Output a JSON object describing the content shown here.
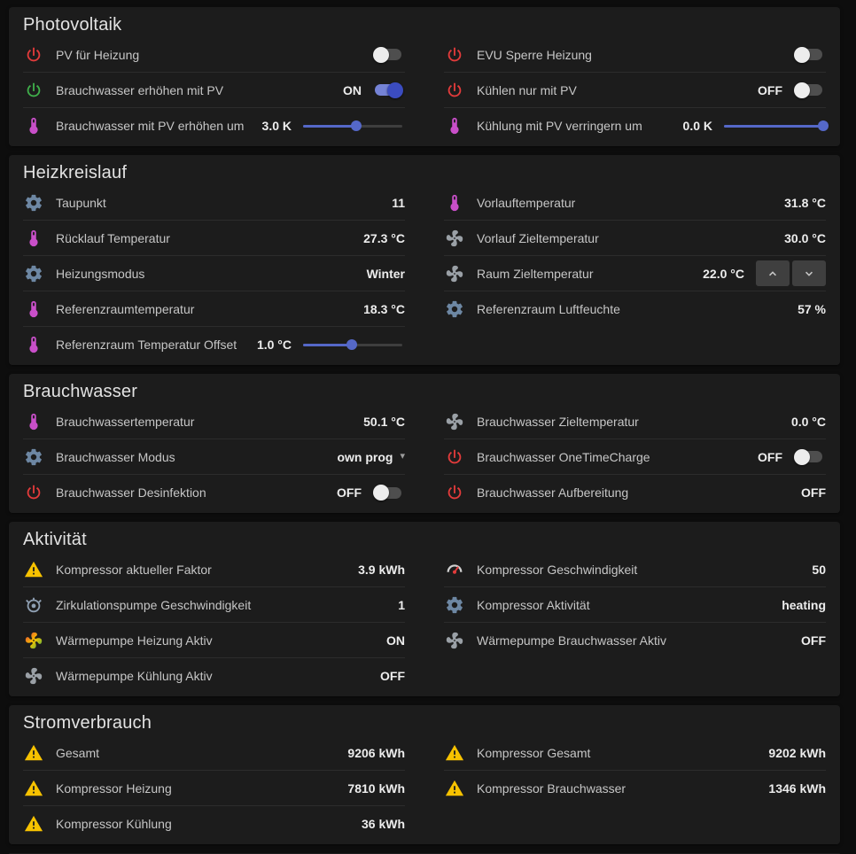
{
  "colors": {
    "background": "#0d0d0d",
    "card": "#1c1c1c",
    "accent_blue": "#5568c8",
    "toggle_on_track": "#7583d6",
    "toggle_on_knob": "#3b4cc0",
    "power_red": "#e23b3b",
    "power_green": "#3fae4a",
    "thermometer_magenta": "#c94fc9",
    "gear_blue": "#6d87a3",
    "fan_gray": "#9aa0a6",
    "warning_yellow": "#f7c200"
  },
  "sections": [
    {
      "title": "Photovoltaik",
      "columns": [
        {
          "rows": [
            {
              "icon": "power-red",
              "label": "PV für Heizung",
              "control": {
                "type": "toggle",
                "state": "off"
              }
            },
            {
              "icon": "power-green",
              "label": "Brauchwasser erhöhen mit PV",
              "value": "ON",
              "control": {
                "type": "toggle",
                "state": "on"
              }
            },
            {
              "icon": "thermometer",
              "label": "Brauchwasser mit PV erhöhen um",
              "value": "3.0 K",
              "control": {
                "type": "slider",
                "percent": 54
              }
            }
          ]
        },
        {
          "rows": [
            {
              "icon": "power-red",
              "label": "EVU Sperre Heizung",
              "control": {
                "type": "toggle",
                "state": "off"
              }
            },
            {
              "icon": "power-red",
              "label": "Kühlen nur mit PV",
              "value": "OFF",
              "control": {
                "type": "toggle",
                "state": "off"
              }
            },
            {
              "icon": "thermometer",
              "label": "Kühlung mit PV verringern um",
              "value": "0.0 K",
              "control": {
                "type": "slider",
                "percent": 100
              }
            }
          ]
        }
      ]
    },
    {
      "title": "Heizkreislauf",
      "columns": [
        {
          "rows": [
            {
              "icon": "gear",
              "label": "Taupunkt",
              "value": "11"
            },
            {
              "icon": "thermometer",
              "label": "Rücklauf Temperatur",
              "value": "27.3 °C"
            },
            {
              "icon": "gear",
              "label": "Heizungsmodus",
              "value": "Winter"
            },
            {
              "icon": "thermometer",
              "label": "Referenzraumtemperatur",
              "value": "18.3 °C"
            },
            {
              "icon": "thermometer",
              "label": "Referenzraum Temperatur Offset",
              "value": "1.0 °C",
              "control": {
                "type": "slider",
                "percent": 49
              }
            }
          ]
        },
        {
          "rows": [
            {
              "icon": "thermometer",
              "label": "Vorlauftemperatur",
              "value": "31.8 °C"
            },
            {
              "icon": "fan",
              "label": "Vorlauf Zieltemperatur",
              "value": "30.0 °C"
            },
            {
              "icon": "fan",
              "label": "Raum Zieltemperatur",
              "value": "22.0 °C",
              "control": {
                "type": "stepper"
              }
            },
            {
              "icon": "gear",
              "label": "Referenzraum Luftfeuchte",
              "value": "57 %"
            }
          ]
        }
      ]
    },
    {
      "title": "Brauchwasser",
      "columns": [
        {
          "rows": [
            {
              "icon": "thermometer",
              "label": "Brauchwassertemperatur",
              "value": "50.1 °C"
            },
            {
              "icon": "gear",
              "label": "Brauchwasser Modus",
              "value": "own prog",
              "control": {
                "type": "select"
              }
            },
            {
              "icon": "power-red",
              "label": "Brauchwasser Desinfektion",
              "value": "OFF",
              "control": {
                "type": "toggle",
                "state": "off"
              }
            }
          ]
        },
        {
          "rows": [
            {
              "icon": "fan",
              "label": "Brauchwasser Zieltemperatur",
              "value": "0.0 °C"
            },
            {
              "icon": "power-red",
              "label": "Brauchwasser OneTimeCharge",
              "value": "OFF",
              "control": {
                "type": "toggle",
                "state": "off"
              }
            },
            {
              "icon": "power-red",
              "label": "Brauchwasser Aufbereitung",
              "value": "OFF"
            }
          ]
        }
      ]
    },
    {
      "title": "Aktivität",
      "columns": [
        {
          "rows": [
            {
              "icon": "warning",
              "label": "Kompressor aktueller Faktor",
              "value": "3.9 kWh"
            },
            {
              "icon": "pump",
              "label": "Zirkulationspumpe Geschwindigkeit",
              "value": "1"
            },
            {
              "icon": "fan-color",
              "label": "Wärmepumpe Heizung Aktiv",
              "value": "ON"
            },
            {
              "icon": "fan",
              "label": "Wärmepumpe Kühlung Aktiv",
              "value": "OFF"
            }
          ]
        },
        {
          "rows": [
            {
              "icon": "gauge",
              "label": "Kompressor Geschwindigkeit",
              "value": "50"
            },
            {
              "icon": "gear",
              "label": "Kompressor Aktivität",
              "value": "heating"
            },
            {
              "icon": "fan",
              "label": "Wärmepumpe Brauchwasser Aktiv",
              "value": "OFF"
            }
          ]
        }
      ]
    },
    {
      "title": "Stromverbrauch",
      "columns": [
        {
          "rows": [
            {
              "icon": "warning",
              "label": "Gesamt",
              "value": "9206 kWh"
            },
            {
              "icon": "warning",
              "label": "Kompressor Heizung",
              "value": "7810 kWh"
            },
            {
              "icon": "warning",
              "label": "Kompressor Kühlung",
              "value": "36 kWh"
            }
          ]
        },
        {
          "rows": [
            {
              "icon": "warning",
              "label": "Kompressor Gesamt",
              "value": "9202 kWh"
            },
            {
              "icon": "warning",
              "label": "Kompressor Brauchwasser",
              "value": "1346 kWh"
            }
          ]
        }
      ]
    }
  ]
}
